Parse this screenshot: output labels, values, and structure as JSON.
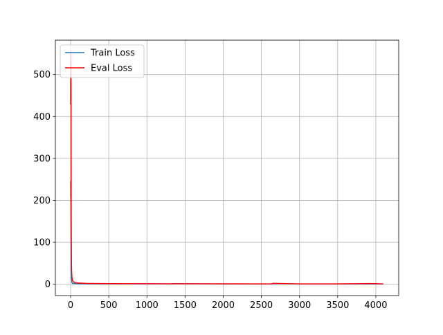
{
  "chart_data": {
    "type": "line",
    "title": "",
    "xlabel": "",
    "ylabel": "",
    "xlim": [
      -200,
      4300
    ],
    "ylim": [
      -27,
      582
    ],
    "xticks": [
      0,
      500,
      1000,
      1500,
      2000,
      2500,
      3000,
      3500,
      4000
    ],
    "yticks": [
      0,
      100,
      200,
      300,
      400,
      500
    ],
    "grid": true,
    "legend_position": "upper-left",
    "series": [
      {
        "name": "Train Loss",
        "color": "#1f77b4",
        "x": [
          0,
          1,
          2,
          3,
          4,
          6,
          8,
          10,
          14,
          20,
          30,
          50,
          100,
          200,
          400,
          800,
          1330,
          1340,
          2000,
          2640,
          2650,
          3000,
          3500,
          3920,
          4090
        ],
        "y": [
          245,
          205,
          220,
          185,
          150,
          95,
          50,
          20,
          6,
          3,
          2,
          1.5,
          1,
          0.8,
          0.7,
          0.6,
          0.6,
          1.5,
          0.5,
          0.5,
          1.5,
          0.5,
          0.5,
          0.5,
          0.5
        ]
      },
      {
        "name": "Eval Loss",
        "color": "#ff0000",
        "x": [
          0,
          1,
          2,
          3,
          4,
          5,
          6,
          8,
          10,
          12,
          15,
          20,
          30,
          50,
          100,
          200,
          500,
          1000,
          1500,
          2000,
          2500,
          2640,
          2650,
          3000,
          3500,
          3920,
          4090
        ],
        "y": [
          430,
          555,
          460,
          530,
          490,
          470,
          300,
          140,
          65,
          35,
          22,
          12,
          7,
          4,
          3,
          2,
          1.5,
          1.3,
          1.1,
          1,
          0.9,
          0.9,
          2,
          0.9,
          0.8,
          1.6,
          0.8
        ]
      }
    ]
  }
}
